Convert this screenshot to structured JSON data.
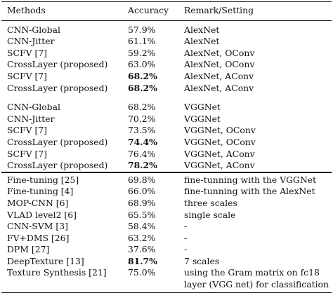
{
  "table": {
    "headers": [
      "Methods",
      "Accuracy",
      "Remark/Setting"
    ],
    "groups": [
      {
        "rows": [
          {
            "method": "CNN-Global",
            "accuracy": "57.9%",
            "remark": "AlexNet",
            "bold": false
          },
          {
            "method": "CNN-Jitter",
            "accuracy": "61.1%",
            "remark": "AlexNet",
            "bold": false
          },
          {
            "method": "SCFV [7]",
            "accuracy": "59.2%",
            "remark": "AlexNet, OConv",
            "bold": false
          },
          {
            "method": "CrossLayer (proposed)",
            "accuracy": "63.0%",
            "remark": "AlexNet, OConv",
            "bold": false
          },
          {
            "method": "SCFV [7]",
            "accuracy": "68.2%",
            "remark": "AlexNet, AConv",
            "bold": true
          },
          {
            "method": "CrossLayer (proposed)",
            "accuracy": "68.2%",
            "remark": "AlexNet, AConv",
            "bold": true
          }
        ]
      },
      {
        "rows": [
          {
            "method": "CNN-Global",
            "accuracy": "68.2%",
            "remark": "VGGNet",
            "bold": false
          },
          {
            "method": "CNN-Jitter",
            "accuracy": "70.2%",
            "remark": "VGGNet",
            "bold": false
          },
          {
            "method": "SCFV [7]",
            "accuracy": "73.5%",
            "remark": "VGGNet, OConv",
            "bold": false
          },
          {
            "method": "CrossLayer (proposed)",
            "accuracy": "74.4%",
            "remark": "VGGNet, OConv",
            "bold": true
          },
          {
            "method": "SCFV [7]",
            "accuracy": "76.4%",
            "remark": "VGGNet, AConv",
            "bold": false
          },
          {
            "method": "CrossLayer (proposed)",
            "accuracy": "78.2%",
            "remark": "VGGNet, AConv",
            "bold": true
          }
        ]
      },
      {
        "rows": [
          {
            "method": "Fine-tuning [25]",
            "accuracy": "69.8%",
            "remark": "fine-tunning with the VGGNet",
            "bold": false
          },
          {
            "method": "Fine-tuning [4]",
            "accuracy": "66.0%",
            "remark": "fine-tunning with the AlexNet",
            "bold": false
          },
          {
            "method": "MOP-CNN [6]",
            "accuracy": "68.9%",
            "remark": "three scales",
            "bold": false
          },
          {
            "method": "VLAD level2 [6]",
            "accuracy": "65.5%",
            "remark": "single scale",
            "bold": false
          },
          {
            "method": "CNN-SVM [3]",
            "accuracy": "58.4%",
            "remark": "-",
            "bold": false
          },
          {
            "method": "FV+DMS [26]",
            "accuracy": "63.2%",
            "remark": "-",
            "bold": false
          },
          {
            "method": "DPM [27]",
            "accuracy": "37.6%",
            "remark": "-",
            "bold": false
          },
          {
            "method": "DeepTexture [13]",
            "accuracy": "81.7%",
            "remark": "7 scales",
            "bold": true
          },
          {
            "method": "Texture Synthesis [21]",
            "accuracy": "75.0%",
            "remark": "using the Gram matrix on fc18 layer (VGG net) for classification",
            "bold": false
          }
        ]
      }
    ]
  }
}
